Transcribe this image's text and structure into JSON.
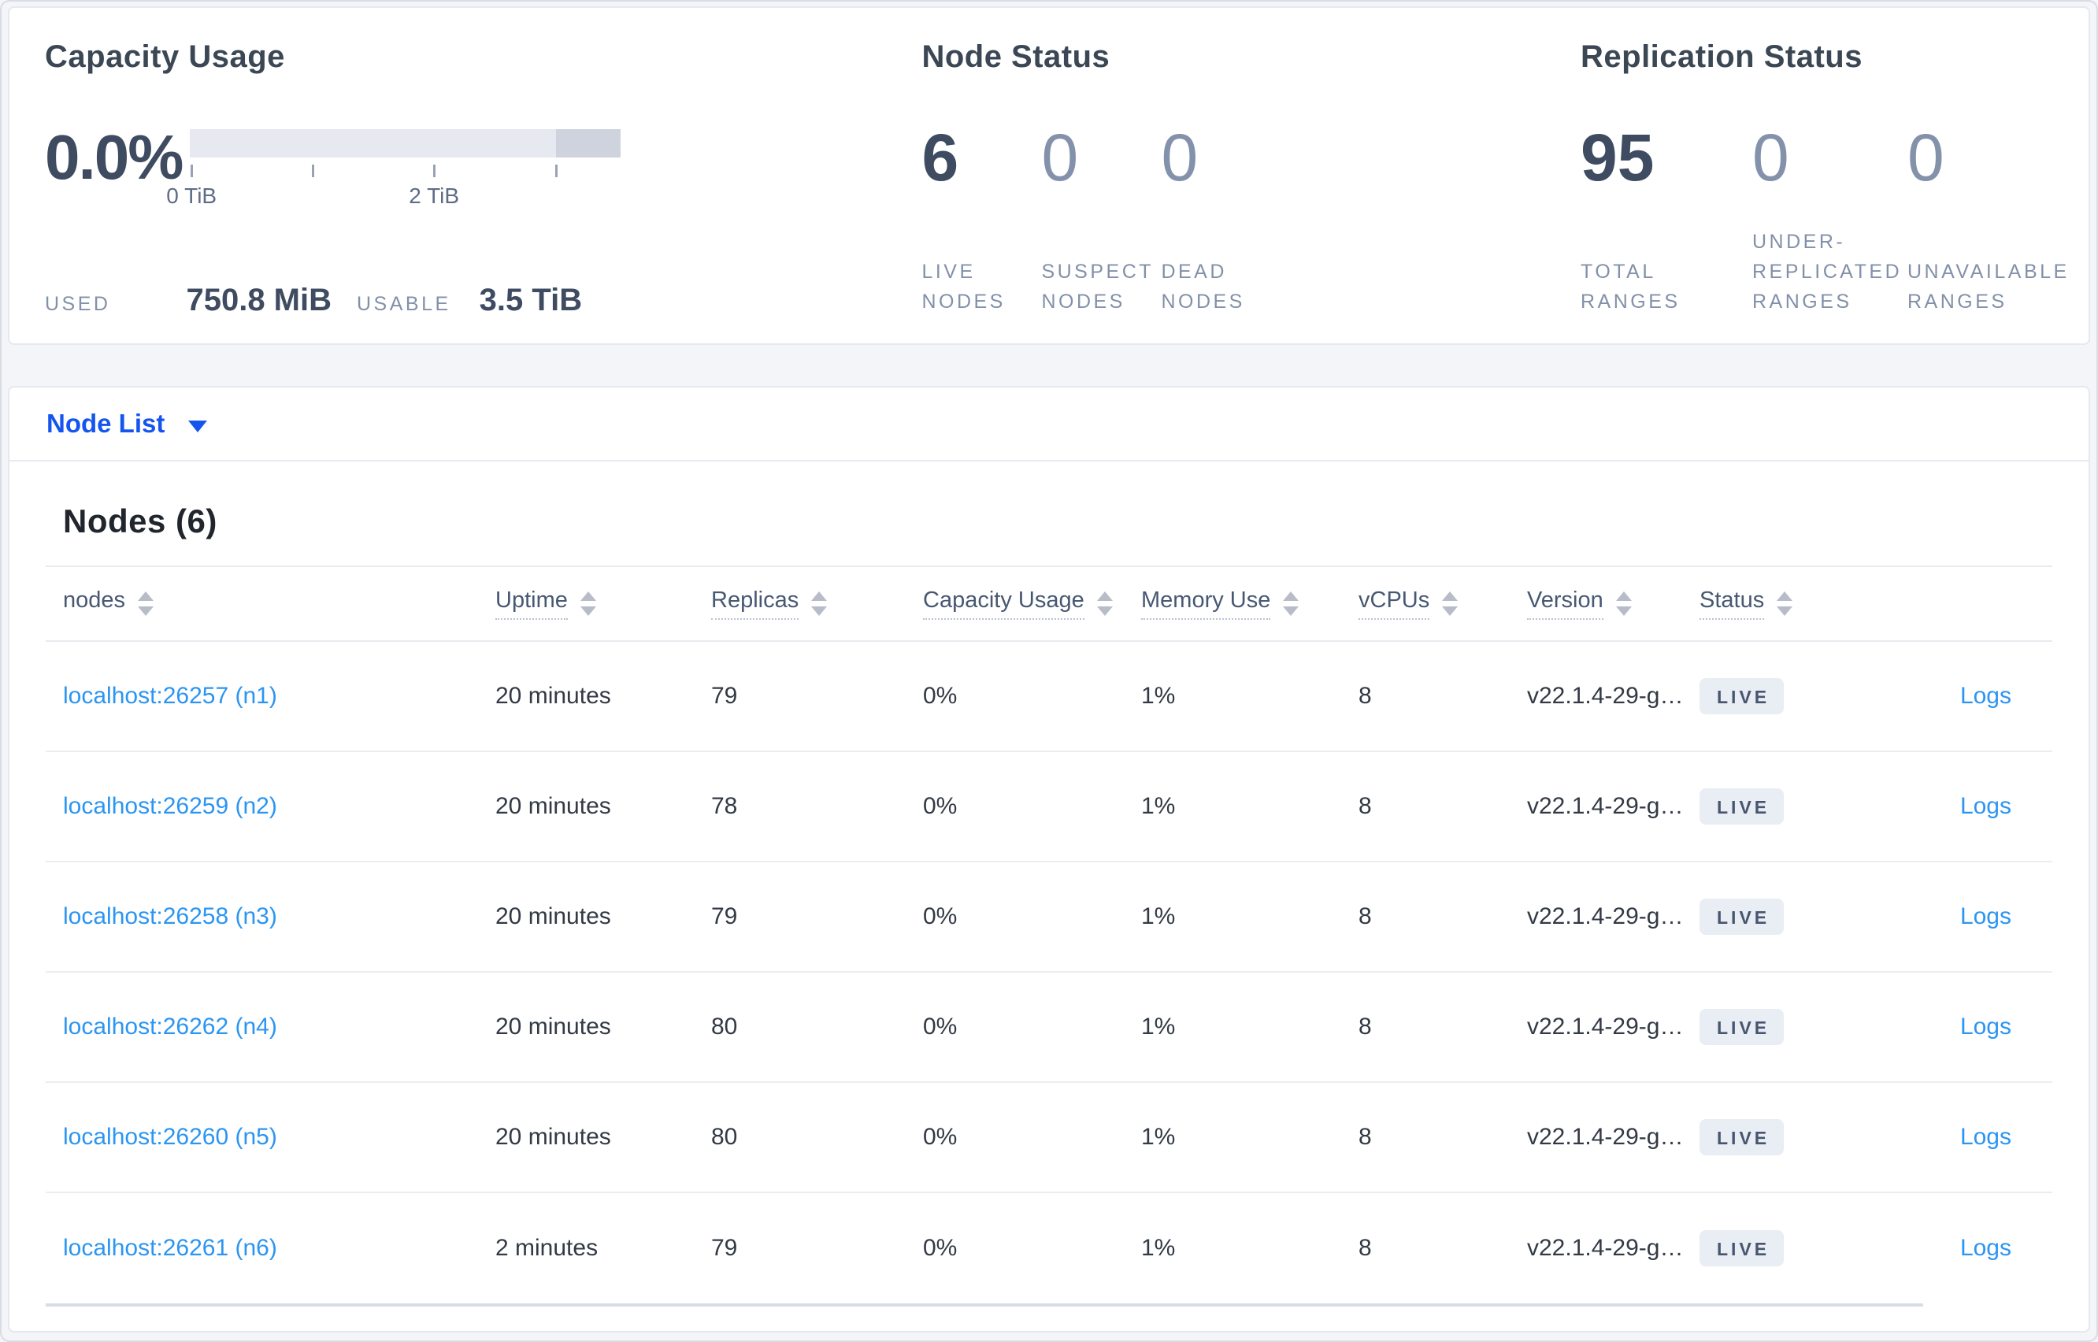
{
  "summary": {
    "capacity": {
      "title": "Capacity Usage",
      "percent": "0.0%",
      "used_label": "USED",
      "used_value": "750.8 MiB",
      "usable_label": "USABLE",
      "usable_value": "3.5 TiB",
      "axis": {
        "ticks": [
          {
            "label": "0 TiB",
            "percent": 0.4
          },
          {
            "label": "",
            "percent": 28.5
          },
          {
            "label": "2 TiB",
            "percent": 56.7
          },
          {
            "label": "",
            "percent": 85
          }
        ],
        "dark_segment_start_percent": 85
      }
    },
    "node_status": {
      "title": "Node Status",
      "stats": [
        {
          "value": "6",
          "label": "LIVE NODES",
          "emphasis": true
        },
        {
          "value": "0",
          "label": "SUSPECT NODES",
          "emphasis": false
        },
        {
          "value": "0",
          "label": "DEAD NODES",
          "emphasis": false
        }
      ]
    },
    "replication_status": {
      "title": "Replication Status",
      "stats": [
        {
          "value": "95",
          "label": "TOTAL RANGES",
          "emphasis": true
        },
        {
          "value": "0",
          "label": "UNDER-REPLICATED RANGES",
          "emphasis": false
        },
        {
          "value": "0",
          "label": "UNAVAILABLE RANGES",
          "emphasis": false
        }
      ]
    }
  },
  "node_list": {
    "dropdown_label": "Node List",
    "table_title": "Nodes (6)",
    "logs_label": "Logs",
    "columns": [
      {
        "label": "nodes",
        "underlined": false
      },
      {
        "label": "Uptime",
        "underlined": true
      },
      {
        "label": "Replicas",
        "underlined": true
      },
      {
        "label": "Capacity Usage",
        "underlined": true
      },
      {
        "label": "Memory Use",
        "underlined": true
      },
      {
        "label": "vCPUs",
        "underlined": true
      },
      {
        "label": "Version",
        "underlined": true
      },
      {
        "label": "Status",
        "underlined": true
      },
      {
        "label": ""
      }
    ],
    "rows": [
      {
        "node": "localhost:26257 (n1)",
        "uptime": "20 minutes",
        "replicas": "79",
        "capacity": "0%",
        "memory": "1%",
        "vcpus": "8",
        "version": "v22.1.4-29-g…",
        "status": "LIVE"
      },
      {
        "node": "localhost:26259 (n2)",
        "uptime": "20 minutes",
        "replicas": "78",
        "capacity": "0%",
        "memory": "1%",
        "vcpus": "8",
        "version": "v22.1.4-29-g…",
        "status": "LIVE"
      },
      {
        "node": "localhost:26258 (n3)",
        "uptime": "20 minutes",
        "replicas": "79",
        "capacity": "0%",
        "memory": "1%",
        "vcpus": "8",
        "version": "v22.1.4-29-g…",
        "status": "LIVE"
      },
      {
        "node": "localhost:26262 (n4)",
        "uptime": "20 minutes",
        "replicas": "80",
        "capacity": "0%",
        "memory": "1%",
        "vcpus": "8",
        "version": "v22.1.4-29-g…",
        "status": "LIVE"
      },
      {
        "node": "localhost:26260 (n5)",
        "uptime": "20 minutes",
        "replicas": "80",
        "capacity": "0%",
        "memory": "1%",
        "vcpus": "8",
        "version": "v22.1.4-29-g…",
        "status": "LIVE"
      },
      {
        "node": "localhost:26261 (n6)",
        "uptime": "2 minutes",
        "replicas": "79",
        "capacity": "0%",
        "memory": "1%",
        "vcpus": "8",
        "version": "v22.1.4-29-g…",
        "status": "LIVE"
      }
    ]
  },
  "colors": {
    "link_blue": "#2b95f2",
    "primary_blue": "#1455f0",
    "dark_text": "#3e4b61",
    "muted_label": "#8290a9",
    "live_badge_bg": "#e9edf4",
    "bar_light": "#e7e9f0",
    "bar_dark": "#ced3de"
  }
}
